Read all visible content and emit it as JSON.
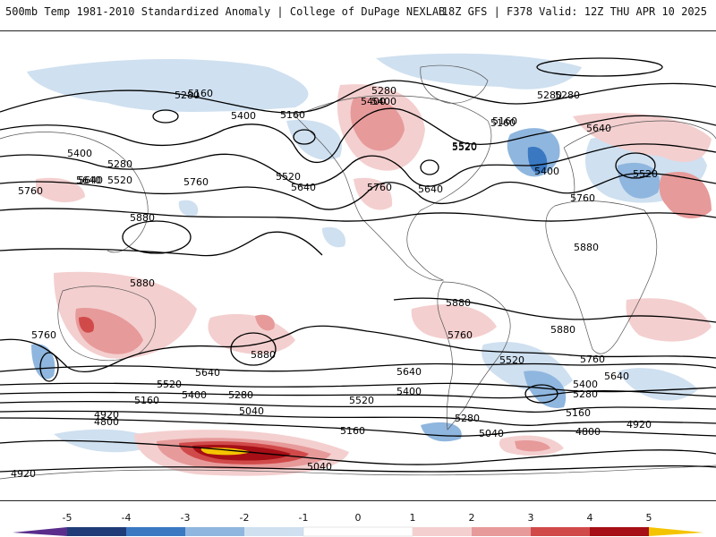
{
  "header": {
    "title_left": "500mb Temp 1981-2010 Standardized Anomaly | College of DuPage NEXLAB",
    "title_right": "18Z GFS | F378 Valid: 12Z THU APR 10 2025"
  },
  "colors": {
    "anom_neg5": "#5a2d8c",
    "anom_neg4": "#1f3c78",
    "anom_neg3": "#3a78c2",
    "anom_neg2": "#8fb6de",
    "anom_neg1": "#cfe0f0",
    "anom_pos1": "#f4cfcf",
    "anom_pos2": "#e79a9a",
    "anom_pos3": "#d14a4a",
    "anom_pos4": "#a50f15",
    "anom_pos5": "#f5c400"
  },
  "colorbar": {
    "labels": [
      "-5",
      "-4",
      "-3",
      "-2",
      "-1",
      "0",
      "1",
      "2",
      "3",
      "4",
      "5"
    ]
  },
  "contour_labels": [
    "5160",
    "5280",
    "5400",
    "5160",
    "5280",
    "5400",
    "5280",
    "5160",
    "5400",
    "5280",
    "5520",
    "5640",
    "5760",
    "5520",
    "5640",
    "5760",
    "5640",
    "5520",
    "5400",
    "5640",
    "5520",
    "5760",
    "5880",
    "5880",
    "5880",
    "5880",
    "5880",
    "5760",
    "5760",
    "5880",
    "5640",
    "5520",
    "5400",
    "5160",
    "4920",
    "4800",
    "5280",
    "5040",
    "5640",
    "5520",
    "5400",
    "5280",
    "5160",
    "5040",
    "4920",
    "4800",
    "4920",
    "5040",
    "5640",
    "5520",
    "5400",
    "5280",
    "5160",
    "5760",
    "5760",
    "5160",
    "5400",
    "5640",
    "5280",
    "5520"
  ]
}
